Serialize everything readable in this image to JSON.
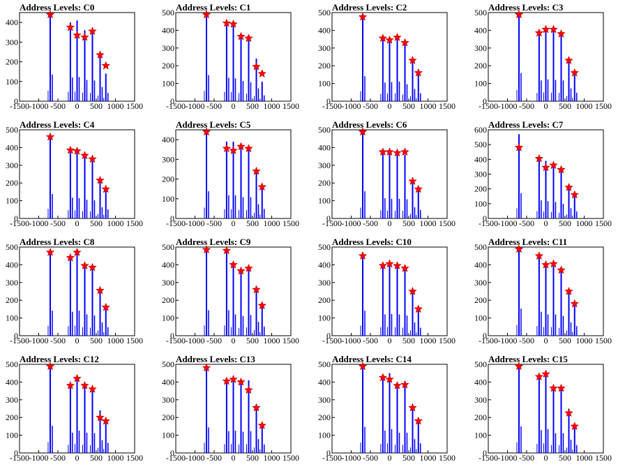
{
  "chart_data": [
    {
      "type": "bar",
      "title": "Address Levels: C0",
      "xlim": [
        -1500,
        1500
      ],
      "ylim": [
        0,
        450
      ],
      "yticks": [
        0,
        100,
        200,
        300,
        400
      ],
      "xticks": [
        -1500,
        -1000,
        -500,
        0,
        500,
        1000,
        1500
      ],
      "x": [
        -700,
        -175,
        0,
        200,
        400,
        600,
        750
      ],
      "values": [
        450,
        400,
        410,
        360,
        350,
        240,
        140
      ],
      "peaks": [
        455,
        375,
        335,
        325,
        355,
        235,
        180
      ],
      "colors": {
        "bars": "#0000ff",
        "peaks": "#ff0000"
      }
    },
    {
      "type": "bar",
      "title": "Address Levels: C1",
      "xlim": [
        -1500,
        1500
      ],
      "ylim": [
        0,
        500
      ],
      "yticks": [
        0,
        100,
        200,
        300,
        400,
        500
      ],
      "xticks": [
        -1500,
        -1000,
        -500,
        0,
        500,
        1000,
        1500
      ],
      "x": [
        -700,
        -175,
        0,
        200,
        400,
        600,
        750
      ],
      "values": [
        490,
        440,
        430,
        380,
        355,
        240,
        110
      ],
      "peaks": [
        490,
        440,
        435,
        365,
        355,
        195,
        155
      ],
      "colors": {
        "bars": "#0000ff",
        "peaks": "#ff0000"
      }
    },
    {
      "type": "bar",
      "title": "Address Levels: C2",
      "xlim": [
        -1500,
        1500
      ],
      "ylim": [
        0,
        500
      ],
      "yticks": [
        0,
        100,
        200,
        300,
        400,
        500
      ],
      "xticks": [
        -1500,
        -1000,
        -500,
        0,
        500,
        1000,
        1500
      ],
      "x": [
        -700,
        -175,
        0,
        200,
        400,
        600,
        750
      ],
      "values": [
        470,
        350,
        360,
        370,
        320,
        230,
        150
      ],
      "peaks": [
        475,
        355,
        345,
        360,
        330,
        230,
        160
      ],
      "colors": {
        "bars": "#0000ff",
        "peaks": "#ff0000"
      }
    },
    {
      "type": "bar",
      "title": "Address Levels: C3",
      "xlim": [
        -1500,
        1500
      ],
      "ylim": [
        0,
        500
      ],
      "yticks": [
        0,
        100,
        200,
        300,
        400,
        500
      ],
      "xticks": [
        -1500,
        -1000,
        -500,
        0,
        500,
        1000,
        1500
      ],
      "x": [
        -700,
        -175,
        0,
        200,
        400,
        600,
        750
      ],
      "values": [
        530,
        390,
        410,
        400,
        390,
        240,
        160
      ],
      "peaks": [
        520,
        385,
        405,
        405,
        380,
        230,
        160
      ],
      "colors": {
        "bars": "#0000ff",
        "peaks": "#ff0000"
      }
    },
    {
      "type": "bar",
      "title": "Address Levels: C4",
      "xlim": [
        -1500,
        1500
      ],
      "ylim": [
        0,
        500
      ],
      "yticks": [
        0,
        100,
        200,
        300,
        400,
        500
      ],
      "xticks": [
        -1500,
        -1000,
        -500,
        0,
        500,
        1000,
        1500
      ],
      "x": [
        -700,
        -175,
        0,
        200,
        400,
        600,
        750
      ],
      "values": [
        460,
        390,
        380,
        350,
        340,
        210,
        170
      ],
      "peaks": [
        460,
        385,
        380,
        355,
        335,
        215,
        165
      ],
      "colors": {
        "bars": "#0000ff",
        "peaks": "#ff0000"
      }
    },
    {
      "type": "bar",
      "title": "Address Levels: C5",
      "xlim": [
        -1500,
        1500
      ],
      "ylim": [
        0,
        450
      ],
      "yticks": [
        0,
        100,
        200,
        300,
        400
      ],
      "xticks": [
        -1500,
        -1000,
        -500,
        0,
        500,
        1000,
        1500
      ],
      "x": [
        -700,
        -175,
        0,
        200,
        400,
        600,
        750
      ],
      "values": [
        460,
        390,
        390,
        360,
        360,
        240,
        160
      ],
      "peaks": [
        470,
        355,
        345,
        365,
        355,
        240,
        160
      ],
      "colors": {
        "bars": "#0000ff",
        "peaks": "#ff0000"
      }
    },
    {
      "type": "bar",
      "title": "Address Levels: C6",
      "xlim": [
        -1500,
        1500
      ],
      "ylim": [
        0,
        500
      ],
      "yticks": [
        0,
        100,
        200,
        300,
        400,
        500
      ],
      "xticks": [
        -1500,
        -1000,
        -500,
        0,
        500,
        1000,
        1500
      ],
      "x": [
        -700,
        -175,
        0,
        200,
        400,
        600,
        750
      ],
      "values": [
        510,
        380,
        370,
        370,
        360,
        210,
        160
      ],
      "peaks": [
        515,
        375,
        375,
        370,
        375,
        210,
        165
      ],
      "colors": {
        "bars": "#0000ff",
        "peaks": "#ff0000"
      }
    },
    {
      "type": "bar",
      "title": "Address Levels: C7",
      "xlim": [
        -1500,
        1500
      ],
      "ylim": [
        0,
        600
      ],
      "yticks": [
        0,
        100,
        200,
        300,
        400,
        500,
        600
      ],
      "xticks": [
        -1500,
        -1000,
        -500,
        0,
        500,
        1000,
        1500
      ],
      "x": [
        -700,
        -175,
        0,
        200,
        400,
        600,
        750
      ],
      "values": [
        570,
        410,
        390,
        370,
        330,
        230,
        160
      ],
      "peaks": [
        480,
        405,
        345,
        360,
        330,
        210,
        160
      ],
      "colors": {
        "bars": "#0000ff",
        "peaks": "#ff0000"
      }
    },
    {
      "type": "bar",
      "title": "Address Levels: C8",
      "xlim": [
        -1500,
        1500
      ],
      "ylim": [
        0,
        500
      ],
      "yticks": [
        0,
        100,
        200,
        300,
        400,
        500
      ],
      "xticks": [
        -1500,
        -1000,
        -500,
        0,
        500,
        1000,
        1500
      ],
      "x": [
        -700,
        -175,
        0,
        200,
        400,
        600,
        750
      ],
      "values": [
        470,
        450,
        470,
        400,
        380,
        250,
        160
      ],
      "peaks": [
        470,
        440,
        470,
        395,
        385,
        255,
        160
      ],
      "colors": {
        "bars": "#0000ff",
        "peaks": "#ff0000"
      }
    },
    {
      "type": "bar",
      "title": "Address Levels: C9",
      "xlim": [
        -1500,
        1500
      ],
      "ylim": [
        0,
        500
      ],
      "yticks": [
        0,
        100,
        200,
        300,
        400,
        500
      ],
      "xticks": [
        -1500,
        -1000,
        -500,
        0,
        500,
        1000,
        1500
      ],
      "x": [
        -700,
        -175,
        0,
        200,
        400,
        600,
        750
      ],
      "values": [
        480,
        480,
        400,
        370,
        390,
        260,
        170
      ],
      "peaks": [
        485,
        480,
        400,
        365,
        380,
        260,
        170
      ],
      "colors": {
        "bars": "#0000ff",
        "peaks": "#ff0000"
      }
    },
    {
      "type": "bar",
      "title": "Address Levels: C10",
      "xlim": [
        -1500,
        1500
      ],
      "ylim": [
        0,
        500
      ],
      "yticks": [
        0,
        100,
        200,
        300,
        400,
        500
      ],
      "xticks": [
        -1500,
        -1000,
        -500,
        0,
        500,
        1000,
        1500
      ],
      "x": [
        -700,
        -175,
        0,
        200,
        400,
        600,
        750
      ],
      "values": [
        470,
        400,
        410,
        400,
        380,
        250,
        150
      ],
      "peaks": [
        450,
        395,
        405,
        395,
        380,
        250,
        150
      ],
      "colors": {
        "bars": "#0000ff",
        "peaks": "#ff0000"
      }
    },
    {
      "type": "bar",
      "title": "Address Levels: C11",
      "xlim": [
        -1500,
        1500
      ],
      "ylim": [
        0,
        500
      ],
      "yticks": [
        0,
        100,
        200,
        300,
        400,
        500
      ],
      "xticks": [
        -1500,
        -1000,
        -500,
        0,
        500,
        1000,
        1500
      ],
      "x": [
        -700,
        -175,
        0,
        200,
        400,
        600,
        750
      ],
      "values": [
        510,
        450,
        400,
        400,
        370,
        250,
        180
      ],
      "peaks": [
        505,
        450,
        400,
        405,
        370,
        250,
        180
      ],
      "colors": {
        "bars": "#0000ff",
        "peaks": "#ff0000"
      }
    },
    {
      "type": "bar",
      "title": "Address Levels: C12",
      "xlim": [
        -1500,
        1500
      ],
      "ylim": [
        0,
        500
      ],
      "yticks": [
        0,
        100,
        200,
        300,
        400,
        500
      ],
      "xticks": [
        -1500,
        -1000,
        -500,
        0,
        500,
        1000,
        1500
      ],
      "x": [
        -700,
        -175,
        0,
        200,
        400,
        600,
        750
      ],
      "values": [
        510,
        380,
        420,
        380,
        370,
        240,
        190
      ],
      "peaks": [
        505,
        380,
        420,
        380,
        360,
        200,
        180
      ],
      "colors": {
        "bars": "#0000ff",
        "peaks": "#ff0000"
      }
    },
    {
      "type": "bar",
      "title": "Address Levels: C13",
      "xlim": [
        -1500,
        1500
      ],
      "ylim": [
        0,
        500
      ],
      "yticks": [
        0,
        100,
        200,
        300,
        400,
        500
      ],
      "xticks": [
        -1500,
        -1000,
        -500,
        0,
        500,
        1000,
        1500
      ],
      "x": [
        -700,
        -175,
        0,
        200,
        400,
        600,
        750
      ],
      "values": [
        480,
        410,
        420,
        400,
        410,
        260,
        160
      ],
      "peaks": [
        480,
        405,
        415,
        400,
        355,
        255,
        155
      ],
      "colors": {
        "bars": "#0000ff",
        "peaks": "#ff0000"
      }
    },
    {
      "type": "bar",
      "title": "Address Levels: C14",
      "xlim": [
        -1500,
        1500
      ],
      "ylim": [
        0,
        500
      ],
      "yticks": [
        0,
        100,
        200,
        300,
        400,
        500
      ],
      "xticks": [
        -1500,
        -1000,
        -500,
        0,
        500,
        1000,
        1500
      ],
      "x": [
        -700,
        -175,
        0,
        200,
        400,
        600,
        750
      ],
      "values": [
        490,
        420,
        450,
        380,
        380,
        260,
        180
      ],
      "peaks": [
        490,
        425,
        415,
        380,
        385,
        255,
        180
      ],
      "colors": {
        "bars": "#0000ff",
        "peaks": "#ff0000"
      }
    },
    {
      "type": "bar",
      "title": "Address Levels: C15",
      "xlim": [
        -1500,
        1500
      ],
      "ylim": [
        0,
        500
      ],
      "yticks": [
        0,
        100,
        200,
        300,
        400,
        500
      ],
      "xticks": [
        -1500,
        -1000,
        -500,
        0,
        500,
        1000,
        1500
      ],
      "x": [
        -700,
        -175,
        0,
        200,
        400,
        600,
        750
      ],
      "values": [
        500,
        430,
        450,
        370,
        370,
        250,
        150
      ],
      "peaks": [
        505,
        430,
        445,
        365,
        365,
        225,
        150
      ],
      "colors": {
        "bars": "#0000ff",
        "peaks": "#ff0000"
      }
    }
  ]
}
